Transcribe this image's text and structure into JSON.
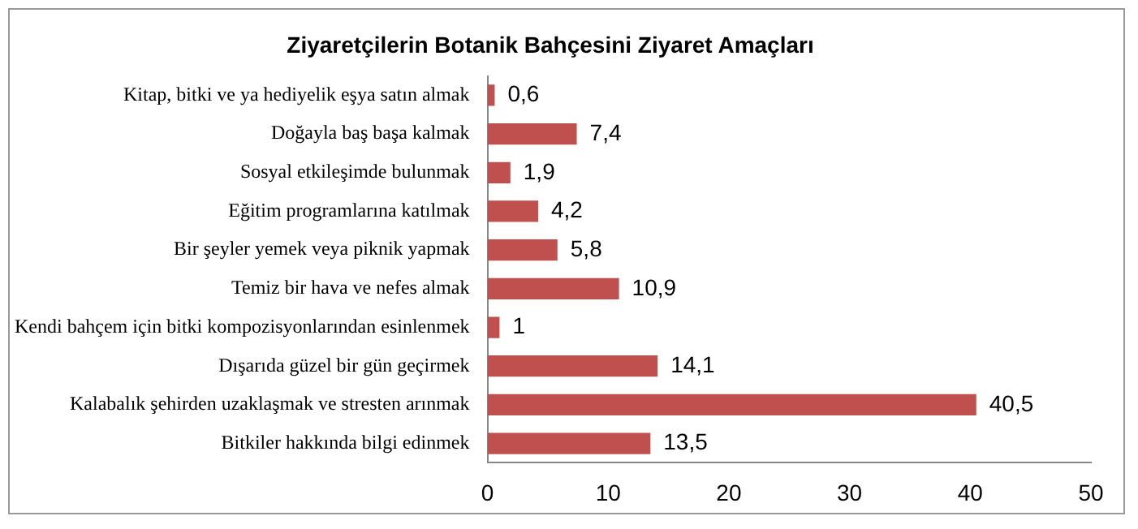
{
  "chart_data": {
    "type": "bar",
    "orientation": "horizontal",
    "title": "Ziyaretçilerin Botanik Bahçesini Ziyaret Amaçları",
    "categories": [
      "Kitap, bitki ve ya hediyelik eşya satın almak",
      "Doğayla baş başa kalmak",
      "Sosyal etkileşimde bulunmak",
      "Eğitim programlarına katılmak",
      "Bir şeyler yemek veya piknik yapmak",
      "Temiz bir hava ve nefes almak",
      "Kendi bahçem için bitki kompozisyonlarından esinlenmek",
      "Dışarıda güzel bir gün geçirmek",
      "Kalabalık şehirden uzaklaşmak ve stresten arınmak",
      "Bitkiler hakkında bilgi edinmek"
    ],
    "values": [
      0.6,
      7.4,
      1.9,
      4.2,
      5.8,
      10.9,
      1,
      14.1,
      40.5,
      13.5
    ],
    "value_labels": [
      "0,6",
      "7,4",
      "1,9",
      "4,2",
      "5,8",
      "10,9",
      "1",
      "14,1",
      "40,5",
      "13,5"
    ],
    "color": "#c0504d",
    "xlim": [
      0,
      50
    ],
    "xticks": [
      0,
      10,
      20,
      30,
      40,
      50
    ],
    "grid": false,
    "legend": false
  }
}
